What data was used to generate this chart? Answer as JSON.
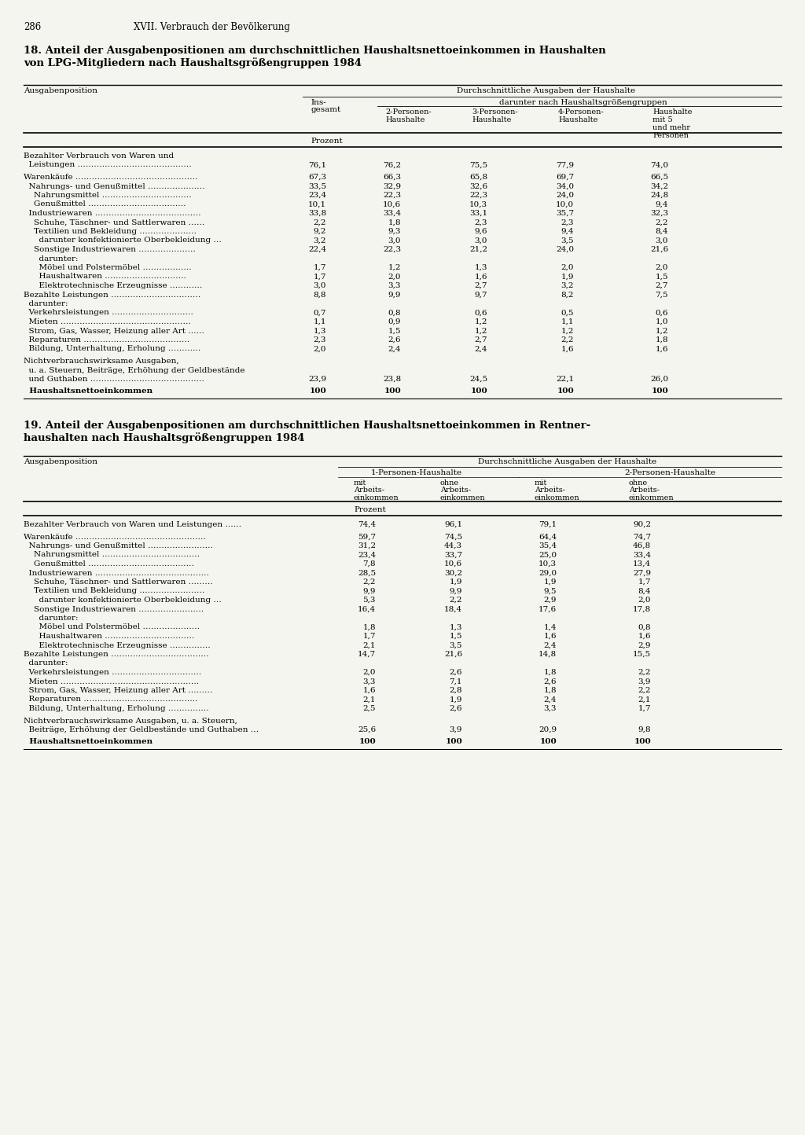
{
  "page_num": "286",
  "chapter": "XVII. Verbrauch der Bevölkerung",
  "table1": {
    "title": "18. Anteil der Ausgabenpositionen am durchschnittlichen Haushaltsnettoeinkommen in Haushalten\nvon LPG-Mitgliedern nach Haushaltsgrößengruppen 1984",
    "col_header1": "Ausgabenposition",
    "col_header2": "Durchschnittliche Ausgaben der Haushalte",
    "col_header2a": "Ins-\ngesamt",
    "col_header2b": "darunter nach Haushaltsgrößengruppen",
    "col_header_sub": [
      "2-Personen-\nHaushalte",
      "3-Personen-\nHaushalte",
      "4-Personen-\nHaushalte",
      "Haushalte\nmit 5\nund mehr\nPersonen"
    ],
    "unit_row": "Prozent",
    "rows": [
      {
        "label": "Bezahlter Verbrauch von Waren und",
        "indent": 0,
        "dots": false,
        "vals": [
          "",
          "",
          "",
          "",
          ""
        ]
      },
      {
        "label": "  Leistungen ……………………………………",
        "indent": 0,
        "dots": true,
        "vals": [
          "76,1",
          "76,2",
          "75,5",
          "77,9",
          "74,0"
        ]
      },
      {
        "label": "",
        "indent": 0,
        "dots": false,
        "vals": [
          "",
          "",
          "",
          "",
          ""
        ]
      },
      {
        "label": "Warenkäufe ………………………………………",
        "indent": 0,
        "dots": true,
        "vals": [
          "67,3",
          "66,3",
          "65,8",
          "69,7",
          "66,5"
        ]
      },
      {
        "label": "  Nahrungs- und Genußmittel …………………",
        "indent": 1,
        "dots": true,
        "vals": [
          "33,5",
          "32,9",
          "32,6",
          "34,0",
          "34,2"
        ]
      },
      {
        "label": "    Nahrungsmittel ……………………………",
        "indent": 2,
        "dots": true,
        "vals": [
          "23,4",
          "22,3",
          "22,3",
          "24,0",
          "24,8"
        ]
      },
      {
        "label": "    Genußmittel ………………………………",
        "indent": 2,
        "dots": true,
        "vals": [
          "10,1",
          "10,6",
          "10,3",
          "10,0",
          "9,4"
        ]
      },
      {
        "label": "  Industriewaren …………………………………",
        "indent": 1,
        "dots": true,
        "vals": [
          "33,8",
          "33,4",
          "33,1",
          "35,7",
          "32,3"
        ]
      },
      {
        "label": "    Schuhe, Täschner- und Sattlerwaren ……",
        "indent": 2,
        "dots": true,
        "vals": [
          "2,2",
          "1,8",
          "2,3",
          "2,3",
          "2,2"
        ]
      },
      {
        "label": "    Textilien und Bekleidung …………………",
        "indent": 2,
        "dots": true,
        "vals": [
          "9,2",
          "9,3",
          "9,6",
          "9,4",
          "8,4"
        ]
      },
      {
        "label": "      darunter konfektionierte Oberbekleidung …",
        "indent": 3,
        "dots": true,
        "vals": [
          "3,2",
          "3,0",
          "3,0",
          "3,5",
          "3,0"
        ]
      },
      {
        "label": "    Sonstige Industriewaren …………………",
        "indent": 2,
        "dots": true,
        "vals": [
          "22,4",
          "22,3",
          "21,2",
          "24,0",
          "21,6"
        ]
      },
      {
        "label": "      darunter:",
        "indent": 3,
        "dots": false,
        "vals": [
          "",
          "",
          "",
          "",
          ""
        ]
      },
      {
        "label": "      Möbel und Polstermöbel ………………",
        "indent": 3,
        "dots": true,
        "vals": [
          "1,7",
          "1,2",
          "1,3",
          "2,0",
          "2,0"
        ]
      },
      {
        "label": "      Haushaltwaren …………………………",
        "indent": 3,
        "dots": true,
        "vals": [
          "1,7",
          "2,0",
          "1,6",
          "1,9",
          "1,5"
        ]
      },
      {
        "label": "      Elektrotechnische Erzeugnisse …………",
        "indent": 3,
        "dots": true,
        "vals": [
          "3,0",
          "3,3",
          "2,7",
          "3,2",
          "2,7"
        ]
      },
      {
        "label": "Bezahlte Leistungen ……………………………",
        "indent": 0,
        "dots": true,
        "vals": [
          "8,8",
          "9,9",
          "9,7",
          "8,2",
          "7,5"
        ]
      },
      {
        "label": "  darunter:",
        "indent": 1,
        "dots": false,
        "vals": [
          "",
          "",
          "",
          "",
          ""
        ]
      },
      {
        "label": "  Verkehrsleistungen …………………………",
        "indent": 1,
        "dots": true,
        "vals": [
          "0,7",
          "0,8",
          "0,6",
          "0,5",
          "0,6"
        ]
      },
      {
        "label": "  Mieten …………………………………………",
        "indent": 1,
        "dots": true,
        "vals": [
          "1,1",
          "0,9",
          "1,2",
          "1,1",
          "1,0"
        ]
      },
      {
        "label": "  Strom, Gas, Wasser, Heizung aller Art ……",
        "indent": 1,
        "dots": true,
        "vals": [
          "1,3",
          "1,5",
          "1,2",
          "1,2",
          "1,2"
        ]
      },
      {
        "label": "  Reparaturen …………………………………",
        "indent": 1,
        "dots": true,
        "vals": [
          "2,3",
          "2,6",
          "2,7",
          "2,2",
          "1,8"
        ]
      },
      {
        "label": "  Bildung, Unterhaltung, Erholung …………",
        "indent": 1,
        "dots": true,
        "vals": [
          "2,0",
          "2,4",
          "2,4",
          "1,6",
          "1,6"
        ]
      },
      {
        "label": "",
        "indent": 0,
        "dots": false,
        "vals": [
          "",
          "",
          "",
          "",
          ""
        ]
      },
      {
        "label": "Nichtverbrauchswirksame Ausgaben,",
        "indent": 0,
        "dots": false,
        "vals": [
          "",
          "",
          "",
          "",
          ""
        ]
      },
      {
        "label": "  u. a. Steuern, Beiträge, Erhöhung der Geldbestände",
        "indent": 0,
        "dots": false,
        "vals": [
          "",
          "",
          "",
          "",
          ""
        ]
      },
      {
        "label": "  und Guthaben ……………………………………",
        "indent": 0,
        "dots": true,
        "vals": [
          "23,9",
          "23,8",
          "24,5",
          "22,1",
          "26,0"
        ]
      },
      {
        "label": "",
        "indent": 0,
        "dots": false,
        "vals": [
          "",
          "",
          "",
          "",
          ""
        ]
      },
      {
        "label": "  Haushaltsnettoeinkommen",
        "indent": 1,
        "dots": false,
        "bold": true,
        "vals": [
          "100",
          "100",
          "100",
          "100",
          "100"
        ]
      }
    ]
  },
  "table2": {
    "title": "19. Anteil der Ausgabenpositionen am durchschnittlichen Haushaltsnettoeinkommen in Rentner-\nhaushalten nach Haushaltsgrößengruppen 1984",
    "col_header1": "Ausgabenposition",
    "col_header2": "Durchschnittliche Ausgaben der Haushalte",
    "col_groups": [
      "1-Personen-Haushalte",
      "2-Personen-Haushalte"
    ],
    "col_subgroups": [
      "mit\nArbeits-\neinkommen",
      "ohne\nArbeits-\neinkommen",
      "mit\nArbeits-\neinkommen",
      "ohne\nArbeits-\neinkommen"
    ],
    "unit_row": "Prozent",
    "rows": [
      {
        "label": "Bezahlter Verbrauch von Waren und Leistungen ……",
        "indent": 0,
        "dots": true,
        "vals": [
          "74,4",
          "96,1",
          "79,1",
          "90,2"
        ]
      },
      {
        "label": "",
        "indent": 0,
        "dots": false,
        "vals": [
          "",
          "",
          "",
          ""
        ]
      },
      {
        "label": "Warenkäufe …………………………………………",
        "indent": 0,
        "dots": true,
        "vals": [
          "59,7",
          "74,5",
          "64,4",
          "74,7"
        ]
      },
      {
        "label": "  Nahrungs- und Genußmittel ……………………",
        "indent": 1,
        "dots": true,
        "vals": [
          "31,2",
          "44,3",
          "35,4",
          "46,8"
        ]
      },
      {
        "label": "    Nahrungsmittel ………………………………",
        "indent": 2,
        "dots": true,
        "vals": [
          "23,4",
          "33,7",
          "25,0",
          "33,4"
        ]
      },
      {
        "label": "    Genußmittel …………………………………",
        "indent": 2,
        "dots": true,
        "vals": [
          "7,8",
          "10,6",
          "10,3",
          "13,4"
        ]
      },
      {
        "label": "  Industriewaren ……………………………………",
        "indent": 1,
        "dots": true,
        "vals": [
          "28,5",
          "30,2",
          "29,0",
          "27,9"
        ]
      },
      {
        "label": "    Schuhe, Täschner- und Sattlerwaren ………",
        "indent": 2,
        "dots": true,
        "vals": [
          "2,2",
          "1,9",
          "1,9",
          "1,7"
        ]
      },
      {
        "label": "    Textilien und Bekleidung ……………………",
        "indent": 2,
        "dots": true,
        "vals": [
          "9,9",
          "9,9",
          "9,5",
          "8,4"
        ]
      },
      {
        "label": "      darunter konfektionierte Oberbekleidung …",
        "indent": 3,
        "dots": true,
        "vals": [
          "5,3",
          "2,2",
          "2,9",
          "2,0"
        ]
      },
      {
        "label": "    Sonstige Industriewaren ……………………",
        "indent": 2,
        "dots": true,
        "vals": [
          "16,4",
          "18,4",
          "17,6",
          "17,8"
        ]
      },
      {
        "label": "      darunter:",
        "indent": 3,
        "dots": false,
        "vals": [
          "",
          "",
          "",
          ""
        ]
      },
      {
        "label": "      Möbel und Polstermöbel …………………",
        "indent": 3,
        "dots": true,
        "vals": [
          "1,8",
          "1,3",
          "1,4",
          "0,8"
        ]
      },
      {
        "label": "      Haushaltwaren ……………………………",
        "indent": 3,
        "dots": true,
        "vals": [
          "1,7",
          "1,5",
          "1,6",
          "1,6"
        ]
      },
      {
        "label": "      Elektrotechnische Erzeugnisse ……………",
        "indent": 3,
        "dots": true,
        "vals": [
          "2,1",
          "3,5",
          "2,4",
          "2,9"
        ]
      },
      {
        "label": "Bezahlte Leistungen ………………………………",
        "indent": 0,
        "dots": true,
        "vals": [
          "14,7",
          "21,6",
          "14,8",
          "15,5"
        ]
      },
      {
        "label": "  darunter:",
        "indent": 1,
        "dots": false,
        "vals": [
          "",
          "",
          "",
          ""
        ]
      },
      {
        "label": "  Verkehrsleistungen ……………………………",
        "indent": 1,
        "dots": true,
        "vals": [
          "2,0",
          "2,6",
          "1,8",
          "2,2"
        ]
      },
      {
        "label": "  Mieten ……………………………………………",
        "indent": 1,
        "dots": true,
        "vals": [
          "3,3",
          "7,1",
          "2,6",
          "3,9"
        ]
      },
      {
        "label": "  Strom, Gas, Wasser, Heizung aller Art ………",
        "indent": 1,
        "dots": true,
        "vals": [
          "1,6",
          "2,8",
          "1,8",
          "2,2"
        ]
      },
      {
        "label": "  Reparaturen ……………………………………",
        "indent": 1,
        "dots": true,
        "vals": [
          "2,1",
          "1,9",
          "2,4",
          "2,1"
        ]
      },
      {
        "label": "  Bildung, Unterhaltung, Erholung ……………",
        "indent": 1,
        "dots": true,
        "vals": [
          "2,5",
          "2,6",
          "3,3",
          "1,7"
        ]
      },
      {
        "label": "",
        "indent": 0,
        "dots": false,
        "vals": [
          "",
          "",
          "",
          ""
        ]
      },
      {
        "label": "Nichtverbrauchswirksame Ausgaben, u. a. Steuern,",
        "indent": 0,
        "dots": false,
        "vals": [
          "",
          "",
          "",
          ""
        ]
      },
      {
        "label": "  Beiträge, Erhöhung der Geldbestände und Guthaben …",
        "indent": 0,
        "dots": true,
        "vals": [
          "25,6",
          "3,9",
          "20,9",
          "9,8"
        ]
      },
      {
        "label": "",
        "indent": 0,
        "dots": false,
        "vals": [
          "",
          "",
          "",
          ""
        ]
      },
      {
        "label": "  Haushaltsnettoeinkommen",
        "indent": 1,
        "dots": false,
        "bold": true,
        "vals": [
          "100",
          "100",
          "100",
          "100"
        ]
      }
    ]
  },
  "bg_color": "#f5f5f0",
  "text_color": "#000000",
  "font_size": 7.5,
  "title_font_size": 9.5
}
